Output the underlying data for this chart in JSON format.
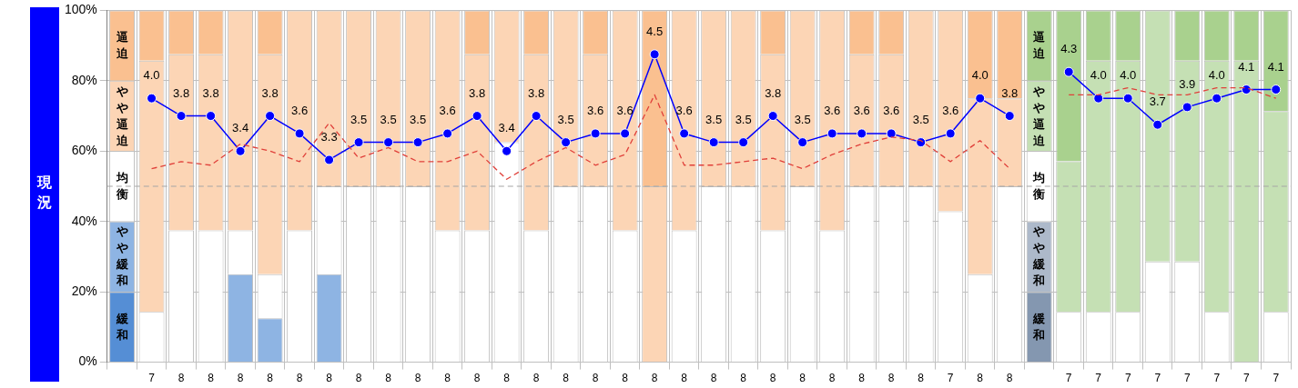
{
  "chart_data": {
    "type": "bar",
    "stacked": true,
    "ylabel": "現況",
    "grid": true,
    "categories": [
      null,
      "7",
      "8",
      "8",
      "8",
      "8",
      "8",
      "8",
      "8",
      "8",
      "8",
      "8",
      "8",
      "8",
      "8",
      "8",
      "8",
      "8",
      "8",
      "8",
      "8",
      "8",
      "8",
      "8",
      "8",
      "8",
      "8",
      "8",
      "7",
      "8",
      "8",
      null,
      "7",
      "7",
      "7",
      "7",
      "7",
      "7",
      "7",
      "7"
    ],
    "ylim": [
      0,
      100
    ],
    "y2lim": [
      1,
      5
    ],
    "yticks": [
      {
        "value": 0,
        "label": "0%"
      },
      {
        "value": 20,
        "label": "20%"
      },
      {
        "value": 40,
        "label": "40%"
      },
      {
        "value": 60,
        "label": "60%"
      },
      {
        "value": 80,
        "label": "80%"
      },
      {
        "value": 100,
        "label": "100%"
      }
    ],
    "series": [
      {
        "name": "緩和",
        "colors": [
          "#558ed5",
          "#558ed5",
          "#558ed5",
          "#558ed5",
          "#558ed5",
          "#558ed5",
          "#558ed5",
          "#558ed5",
          "#558ed5",
          "#558ed5",
          "#558ed5",
          "#558ed5",
          "#558ed5",
          "#558ed5",
          "#558ed5",
          "#558ed5",
          "#558ed5",
          "#558ed5",
          "#558ed5",
          "#558ed5",
          "#558ed5",
          "#558ed5",
          "#558ed5",
          "#558ed5",
          "#558ed5",
          "#558ed5",
          "#558ed5",
          "#558ed5",
          "#558ed5",
          "#558ed5",
          "#558ed5",
          "#8497b0",
          "#8497b0",
          "#8497b0",
          "#8497b0",
          "#8497b0",
          "#8497b0",
          "#8497b0",
          "#8497b0",
          "#8497b0"
        ],
        "values": [
          20,
          0,
          0,
          0,
          0,
          0,
          0,
          0,
          0,
          0,
          0,
          0,
          0,
          0,
          0,
          0,
          0,
          0,
          0,
          0,
          0,
          0,
          0,
          0,
          0,
          0,
          0,
          0,
          0,
          0,
          0,
          20,
          0,
          0,
          0,
          0,
          0,
          0,
          0,
          0
        ]
      },
      {
        "name": "やや緩和",
        "colors": [
          "#8eb4e3",
          "#8eb4e3",
          "#8eb4e3",
          "#8eb4e3",
          "#8eb4e3",
          "#8eb4e3",
          "#8eb4e3",
          "#8eb4e3",
          "#8eb4e3",
          "#8eb4e3",
          "#8eb4e3",
          "#8eb4e3",
          "#8eb4e3",
          "#8eb4e3",
          "#8eb4e3",
          "#8eb4e3",
          "#8eb4e3",
          "#8eb4e3",
          "#8eb4e3",
          "#8eb4e3",
          "#8eb4e3",
          "#8eb4e3",
          "#8eb4e3",
          "#8eb4e3",
          "#8eb4e3",
          "#8eb4e3",
          "#8eb4e3",
          "#8eb4e3",
          "#8eb4e3",
          "#8eb4e3",
          "#8eb4e3",
          "#adb9ca",
          "#adb9ca",
          "#adb9ca",
          "#adb9ca",
          "#adb9ca",
          "#adb9ca",
          "#adb9ca",
          "#adb9ca",
          "#adb9ca"
        ],
        "values": [
          20,
          0,
          0,
          0,
          25,
          12.5,
          0,
          25,
          0,
          0,
          0,
          0,
          0,
          0,
          0,
          0,
          0,
          0,
          0,
          0,
          0,
          0,
          0,
          0,
          0,
          0,
          0,
          0,
          0,
          0,
          0,
          20,
          0,
          0,
          0,
          0,
          0,
          0,
          0,
          0
        ]
      },
      {
        "name": "均衡",
        "color": "#ffffff",
        "values": [
          20,
          14.3,
          37.5,
          37.5,
          12.5,
          12.5,
          37.5,
          25,
          50,
          50,
          50,
          37.5,
          37.5,
          62.5,
          37.5,
          50,
          50,
          37.5,
          0,
          37.5,
          50,
          50,
          37.5,
          50,
          37.5,
          50,
          50,
          50,
          42.9,
          25,
          50,
          20,
          14.3,
          14.3,
          14.3,
          28.6,
          28.6,
          14.3,
          0,
          14.3
        ]
      },
      {
        "name": "やや逼迫",
        "colors": [
          "#fcd5b5",
          "#fcd5b5",
          "#fcd5b5",
          "#fcd5b5",
          "#fcd5b5",
          "#fcd5b5",
          "#fcd5b5",
          "#fcd5b5",
          "#fcd5b5",
          "#fcd5b5",
          "#fcd5b5",
          "#fcd5b5",
          "#fcd5b5",
          "#fcd5b5",
          "#fcd5b5",
          "#fcd5b5",
          "#fcd5b5",
          "#fcd5b5",
          "#fcd5b5",
          "#fcd5b5",
          "#fcd5b5",
          "#fcd5b5",
          "#fcd5b5",
          "#fcd5b5",
          "#fcd5b5",
          "#fcd5b5",
          "#fcd5b5",
          "#fcd5b5",
          "#fcd5b5",
          "#fcd5b5",
          "#fcd5b5",
          "#c5e0b4",
          "#c5e0b4",
          "#c5e0b4",
          "#c5e0b4",
          "#c5e0b4",
          "#c5e0b4",
          "#c5e0b4",
          "#c5e0b4",
          "#c5e0b4"
        ],
        "values": [
          20,
          71.4,
          50,
          50,
          62.5,
          62.5,
          62.5,
          50,
          50,
          50,
          50,
          62.5,
          50,
          37.5,
          50,
          50,
          37.5,
          62.5,
          50,
          62.5,
          50,
          50,
          50,
          50,
          62.5,
          37.5,
          37.5,
          50,
          57.1,
          50,
          25,
          20,
          42.8,
          71.4,
          71.4,
          71.4,
          57.1,
          71.4,
          85.7,
          57.1
        ]
      },
      {
        "name": "逼迫",
        "colors": [
          "#fac090",
          "#fac090",
          "#fac090",
          "#fac090",
          "#fac090",
          "#fac090",
          "#fac090",
          "#fac090",
          "#fac090",
          "#fac090",
          "#fac090",
          "#fac090",
          "#fac090",
          "#fac090",
          "#fac090",
          "#fac090",
          "#fac090",
          "#fac090",
          "#fac090",
          "#fac090",
          "#fac090",
          "#fac090",
          "#fac090",
          "#fac090",
          "#fac090",
          "#fac090",
          "#fac090",
          "#fac090",
          "#fac090",
          "#fac090",
          "#fac090",
          "#a9d18e",
          "#a9d18e",
          "#a9d18e",
          "#a9d18e",
          "#a9d18e",
          "#a9d18e",
          "#a9d18e",
          "#a9d18e",
          "#a9d18e"
        ],
        "values": [
          20,
          14.3,
          12.5,
          12.5,
          0,
          12.5,
          0,
          0,
          0,
          0,
          0,
          0,
          12.5,
          0,
          12.5,
          0,
          12.5,
          0,
          50,
          0,
          0,
          0,
          12.5,
          0,
          0,
          12.5,
          12.5,
          0,
          0,
          25,
          25,
          20,
          42.9,
          14.3,
          14.3,
          0,
          14.3,
          14.3,
          14.3,
          28.6
        ]
      },
      {
        "type": "line",
        "color": "#e0403a",
        "line_style": "dashed",
        "marker": "none",
        "axis": "y2",
        "values": [
          null,
          3.2,
          3.28,
          3.24,
          3.48,
          3.4,
          3.28,
          3.72,
          3.32,
          3.44,
          3.28,
          3.28,
          3.4,
          3.08,
          3.28,
          3.44,
          3.24,
          3.36,
          4.04,
          3.24,
          3.24,
          3.28,
          3.32,
          3.2,
          3.36,
          3.48,
          3.56,
          3.52,
          3.28,
          3.52,
          3.2,
          null,
          4.04,
          4.04,
          4.12,
          4.04,
          4.04,
          4.12,
          4.12,
          4.0
        ]
      },
      {
        "type": "line",
        "color": "#0000ff",
        "marker": "circle",
        "axis": "y2",
        "values": [
          null,
          4.0,
          3.8,
          3.8,
          3.4,
          3.8,
          3.6,
          3.3,
          3.5,
          3.5,
          3.5,
          3.6,
          3.8,
          3.4,
          3.8,
          3.5,
          3.6,
          3.6,
          4.5,
          3.6,
          3.5,
          3.5,
          3.8,
          3.5,
          3.6,
          3.6,
          3.6,
          3.5,
          3.6,
          4.0,
          3.8,
          null,
          4.3,
          4.0,
          4.0,
          3.7,
          3.9,
          4.0,
          4.1,
          4.1
        ],
        "value_labels": [
          null,
          "4.0",
          "3.8",
          "3.8",
          "3.4",
          "3.8",
          "3.6",
          "3.3",
          "3.5",
          "3.5",
          "3.5",
          "3.6",
          "3.8",
          "3.4",
          "3.8",
          "3.5",
          "3.6",
          "3.6",
          "4.5",
          "3.6",
          "3.5",
          "3.5",
          "3.8",
          "3.5",
          "3.6",
          "3.6",
          "3.6",
          "3.5",
          "3.6",
          "4.0",
          "3.8",
          null,
          "4.3",
          "4.0",
          "4.0",
          "3.7",
          "3.9",
          "4.0",
          "4.1",
          "4.1"
        ]
      }
    ],
    "ref_lines": [
      {
        "axis": "y",
        "value": 50,
        "color": "#a6a6a6",
        "line_style": "dashed"
      }
    ]
  }
}
